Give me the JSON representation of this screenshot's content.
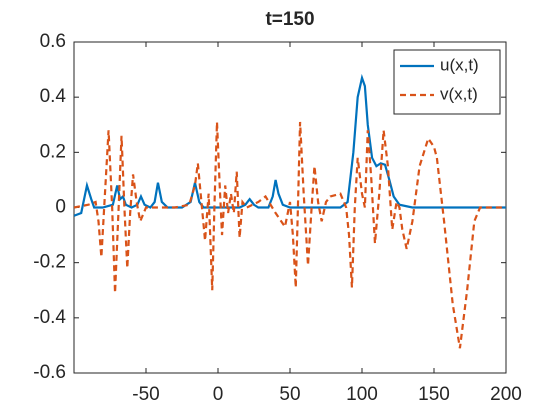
{
  "chart_data": {
    "type": "line",
    "title": "t=150",
    "xlim": [
      -100,
      200
    ],
    "xticks": [
      -50,
      0,
      50,
      100,
      150,
      200
    ],
    "ylim": [
      -0.6,
      0.6
    ],
    "yticks": [
      -0.6,
      -0.4,
      -0.2,
      0,
      0.2,
      0.4,
      0.6
    ],
    "legend": "northeast",
    "grid": false,
    "series": [
      {
        "name": "u(x,t)",
        "color": "#0072bd",
        "dash": "solid",
        "x": [
          -100,
          -95,
          -91,
          -88,
          -86,
          -80,
          -73,
          -70,
          -68,
          -66,
          -64,
          -60,
          -56,
          -53.5,
          -51,
          -47,
          -44,
          -41.7,
          -39,
          -35,
          -25,
          -19,
          -16,
          -13,
          -10,
          0,
          15,
          19,
          22,
          25,
          28,
          35,
          38,
          40,
          42,
          45,
          50,
          85,
          90,
          94,
          97,
          100,
          102,
          104,
          107,
          110,
          113,
          116,
          119,
          122,
          126,
          135,
          200
        ],
        "values": [
          -0.03,
          -0.02,
          0.08,
          0.03,
          0,
          0,
          0.01,
          0.08,
          0.03,
          0.04,
          0.01,
          0,
          0.01,
          0.04,
          0.01,
          0,
          0.02,
          0.09,
          0.02,
          0,
          0,
          0.02,
          0.09,
          0.02,
          0,
          0,
          0,
          0.01,
          0.03,
          0.01,
          0,
          0,
          0.04,
          0.1,
          0.05,
          0.01,
          0,
          0,
          0.02,
          0.2,
          0.4,
          0.47,
          0.44,
          0.3,
          0.18,
          0.15,
          0.16,
          0.155,
          0.1,
          0.04,
          0.01,
          0,
          0
        ]
      },
      {
        "name": "v(x,t)",
        "color": "#d95319",
        "dash": "dashed",
        "x": [
          -100,
          -90,
          -85,
          -83,
          -81,
          -78.5,
          -76,
          -73.5,
          -71.5,
          -69,
          -67,
          -65,
          -63,
          -61,
          -59,
          -56.5,
          -54,
          -50,
          -30,
          -20,
          -16,
          -14,
          -11.5,
          -9,
          -6.5,
          -4,
          -2.5,
          -0.7,
          1,
          2.8,
          5,
          7,
          9,
          11,
          13,
          15,
          17,
          20,
          28,
          33,
          40,
          46.5,
          50,
          52,
          54,
          55.5,
          57,
          59.5,
          62.5,
          65,
          67,
          69.5,
          72,
          75,
          78,
          85,
          89,
          91,
          93,
          95,
          97,
          100,
          102,
          104,
          106.5,
          109,
          112,
          115,
          118,
          121,
          124,
          126,
          128,
          131,
          135,
          140,
          146,
          150,
          152,
          157,
          163,
          168,
          173,
          178,
          182,
          190,
          200
        ],
        "values": [
          0,
          0.01,
          0.02,
          -0.05,
          -0.18,
          0.05,
          0.28,
          0,
          -0.31,
          0,
          0.26,
          0,
          -0.22,
          -0.02,
          0.12,
          0.02,
          -0.05,
          0,
          0,
          0.01,
          0.08,
          0.16,
          0.02,
          -0.12,
          0.05,
          -0.3,
          0,
          0.31,
          0.1,
          -0.1,
          0.08,
          -0.02,
          0.05,
          -0.02,
          0.13,
          -0.11,
          0.02,
          0,
          0.02,
          0.04,
          -0.02,
          -0.07,
          0.02,
          -0.1,
          -0.29,
          0,
          0.31,
          0.05,
          -0.21,
          0,
          0.15,
          0.02,
          -0.05,
          0.02,
          0.04,
          0.05,
          0,
          -0.1,
          -0.29,
          0,
          0.18,
          0.05,
          0,
          0.28,
          0.1,
          -0.13,
          0.05,
          0.28,
          0.15,
          -0.08,
          0.02,
          0,
          -0.08,
          -0.15,
          -0.05,
          0.15,
          0.25,
          0.22,
          0.18,
          -0.05,
          -0.35,
          -0.51,
          -0.3,
          -0.05,
          0,
          0,
          0
        ]
      }
    ]
  }
}
